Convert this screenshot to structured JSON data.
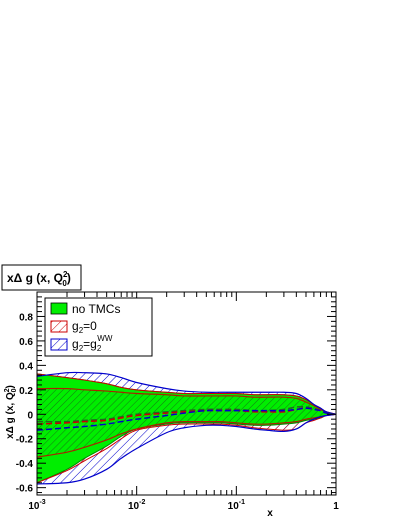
{
  "chart_data": {
    "type": "area",
    "title": "xΔ g (x, Q",
    "title_sub": "2",
    "title_sub2": "0",
    "title_close": ")",
    "xlabel": "x",
    "ylabel": "xΔ g (x, Q",
    "ylabel_sub": "2",
    "ylabel_sub2": "0",
    "ylabel_close": ")",
    "x_scale": "log",
    "xlim": [
      0.001,
      1
    ],
    "ylim": [
      -0.66,
      1.0
    ],
    "x_ticks": [
      {
        "value": 0.001,
        "base": "10",
        "exp": "-3"
      },
      {
        "value": 0.01,
        "base": "10",
        "exp": "-2"
      },
      {
        "value": 0.1,
        "base": "10",
        "exp": "-1"
      },
      {
        "value": 1,
        "base": "1",
        "exp": ""
      }
    ],
    "y_ticks": [
      {
        "value": 0.8,
        "label": "0.8"
      },
      {
        "value": 0.6,
        "label": "0.6"
      },
      {
        "value": 0.4,
        "label": "0.4"
      },
      {
        "value": 0.2,
        "label": "0.2"
      },
      {
        "value": 0,
        "label": "0"
      },
      {
        "value": -0.2,
        "label": "-0.2"
      },
      {
        "value": -0.4,
        "label": "-0.4"
      },
      {
        "value": -0.6,
        "label": "-0.6"
      }
    ],
    "legend_position": "top-left",
    "legend": [
      {
        "key": "notmc",
        "text": "no TMCs",
        "sub": "",
        "tail": "",
        "sup": ""
      },
      {
        "key": "g2zero",
        "text": "g",
        "sub": "2",
        "tail": "=0",
        "sup": ""
      },
      {
        "key": "g2ww",
        "text": "g",
        "sub": "2",
        "tail": "=g",
        "sub2": "2",
        "sup": "WW"
      }
    ],
    "x": [
      0.001,
      0.002,
      0.003,
      0.005,
      0.007,
      0.01,
      0.02,
      0.03,
      0.05,
      0.07,
      0.1,
      0.15,
      0.2,
      0.3,
      0.4,
      0.5,
      0.6,
      0.7,
      0.8,
      1.0
    ],
    "series": [
      {
        "key": "notmc",
        "color": "#00ee00",
        "upper": [
          0.33,
          0.3,
          0.28,
          0.25,
          0.22,
          0.2,
          0.18,
          0.17,
          0.17,
          0.17,
          0.17,
          0.16,
          0.16,
          0.16,
          0.15,
          0.12,
          0.08,
          0.05,
          0.02,
          0.0
        ],
        "lower": [
          -0.56,
          -0.45,
          -0.36,
          -0.26,
          -0.18,
          -0.12,
          -0.08,
          -0.07,
          -0.07,
          -0.07,
          -0.08,
          -0.09,
          -0.09,
          -0.08,
          -0.07,
          -0.05,
          -0.04,
          -0.03,
          -0.01,
          0.0
        ],
        "central": [
          -0.06,
          -0.06,
          -0.05,
          -0.04,
          -0.02,
          0.0,
          0.02,
          0.03,
          0.04,
          0.04,
          0.04,
          0.03,
          0.03,
          0.04,
          0.06,
          0.06,
          0.05,
          0.03,
          0.01,
          0.0
        ],
        "inner_upper": [
          0.21,
          0.21,
          0.2,
          0.19,
          0.18,
          0.17,
          0.16,
          0.15,
          0.15,
          0.15,
          0.15,
          0.14,
          0.14,
          0.14,
          0.13,
          0.1,
          0.07,
          0.04,
          0.02,
          0.0
        ],
        "inner_lower": [
          -0.35,
          -0.31,
          -0.27,
          -0.21,
          -0.16,
          -0.12,
          -0.07,
          -0.06,
          -0.06,
          -0.06,
          -0.07,
          -0.08,
          -0.08,
          -0.07,
          -0.06,
          -0.04,
          -0.03,
          -0.02,
          -0.01,
          0.0
        ]
      },
      {
        "key": "g2zero",
        "color": "#cc0000",
        "upper": [
          0.33,
          0.3,
          0.28,
          0.25,
          0.22,
          0.2,
          0.18,
          0.17,
          0.17,
          0.17,
          0.17,
          0.16,
          0.16,
          0.16,
          0.15,
          0.12,
          0.08,
          0.05,
          0.02,
          0.0
        ],
        "lower": [
          -0.56,
          -0.46,
          -0.38,
          -0.28,
          -0.2,
          -0.13,
          -0.09,
          -0.08,
          -0.08,
          -0.08,
          -0.09,
          -0.11,
          -0.12,
          -0.13,
          -0.12,
          -0.07,
          -0.05,
          -0.03,
          -0.01,
          0.0
        ],
        "central": [
          -0.08,
          -0.07,
          -0.06,
          -0.05,
          -0.03,
          -0.01,
          0.01,
          0.02,
          0.03,
          0.03,
          0.03,
          0.02,
          0.02,
          0.02,
          0.04,
          0.05,
          0.04,
          0.03,
          0.01,
          0.0
        ]
      },
      {
        "key": "g2ww",
        "color": "#0000cc",
        "upper": [
          0.31,
          0.34,
          0.34,
          0.33,
          0.3,
          0.26,
          0.21,
          0.19,
          0.18,
          0.18,
          0.18,
          0.18,
          0.18,
          0.18,
          0.17,
          0.13,
          0.08,
          0.05,
          0.02,
          0.0
        ],
        "lower": [
          -0.57,
          -0.56,
          -0.53,
          -0.45,
          -0.36,
          -0.28,
          -0.15,
          -0.11,
          -0.09,
          -0.09,
          -0.1,
          -0.12,
          -0.13,
          -0.14,
          -0.12,
          -0.07,
          -0.04,
          -0.02,
          -0.01,
          0.0
        ],
        "central": [
          -0.13,
          -0.11,
          -0.1,
          -0.08,
          -0.06,
          -0.04,
          -0.01,
          0.01,
          0.03,
          0.03,
          0.03,
          0.03,
          0.03,
          0.03,
          0.04,
          0.05,
          0.04,
          0.03,
          0.01,
          0.0
        ]
      }
    ]
  }
}
